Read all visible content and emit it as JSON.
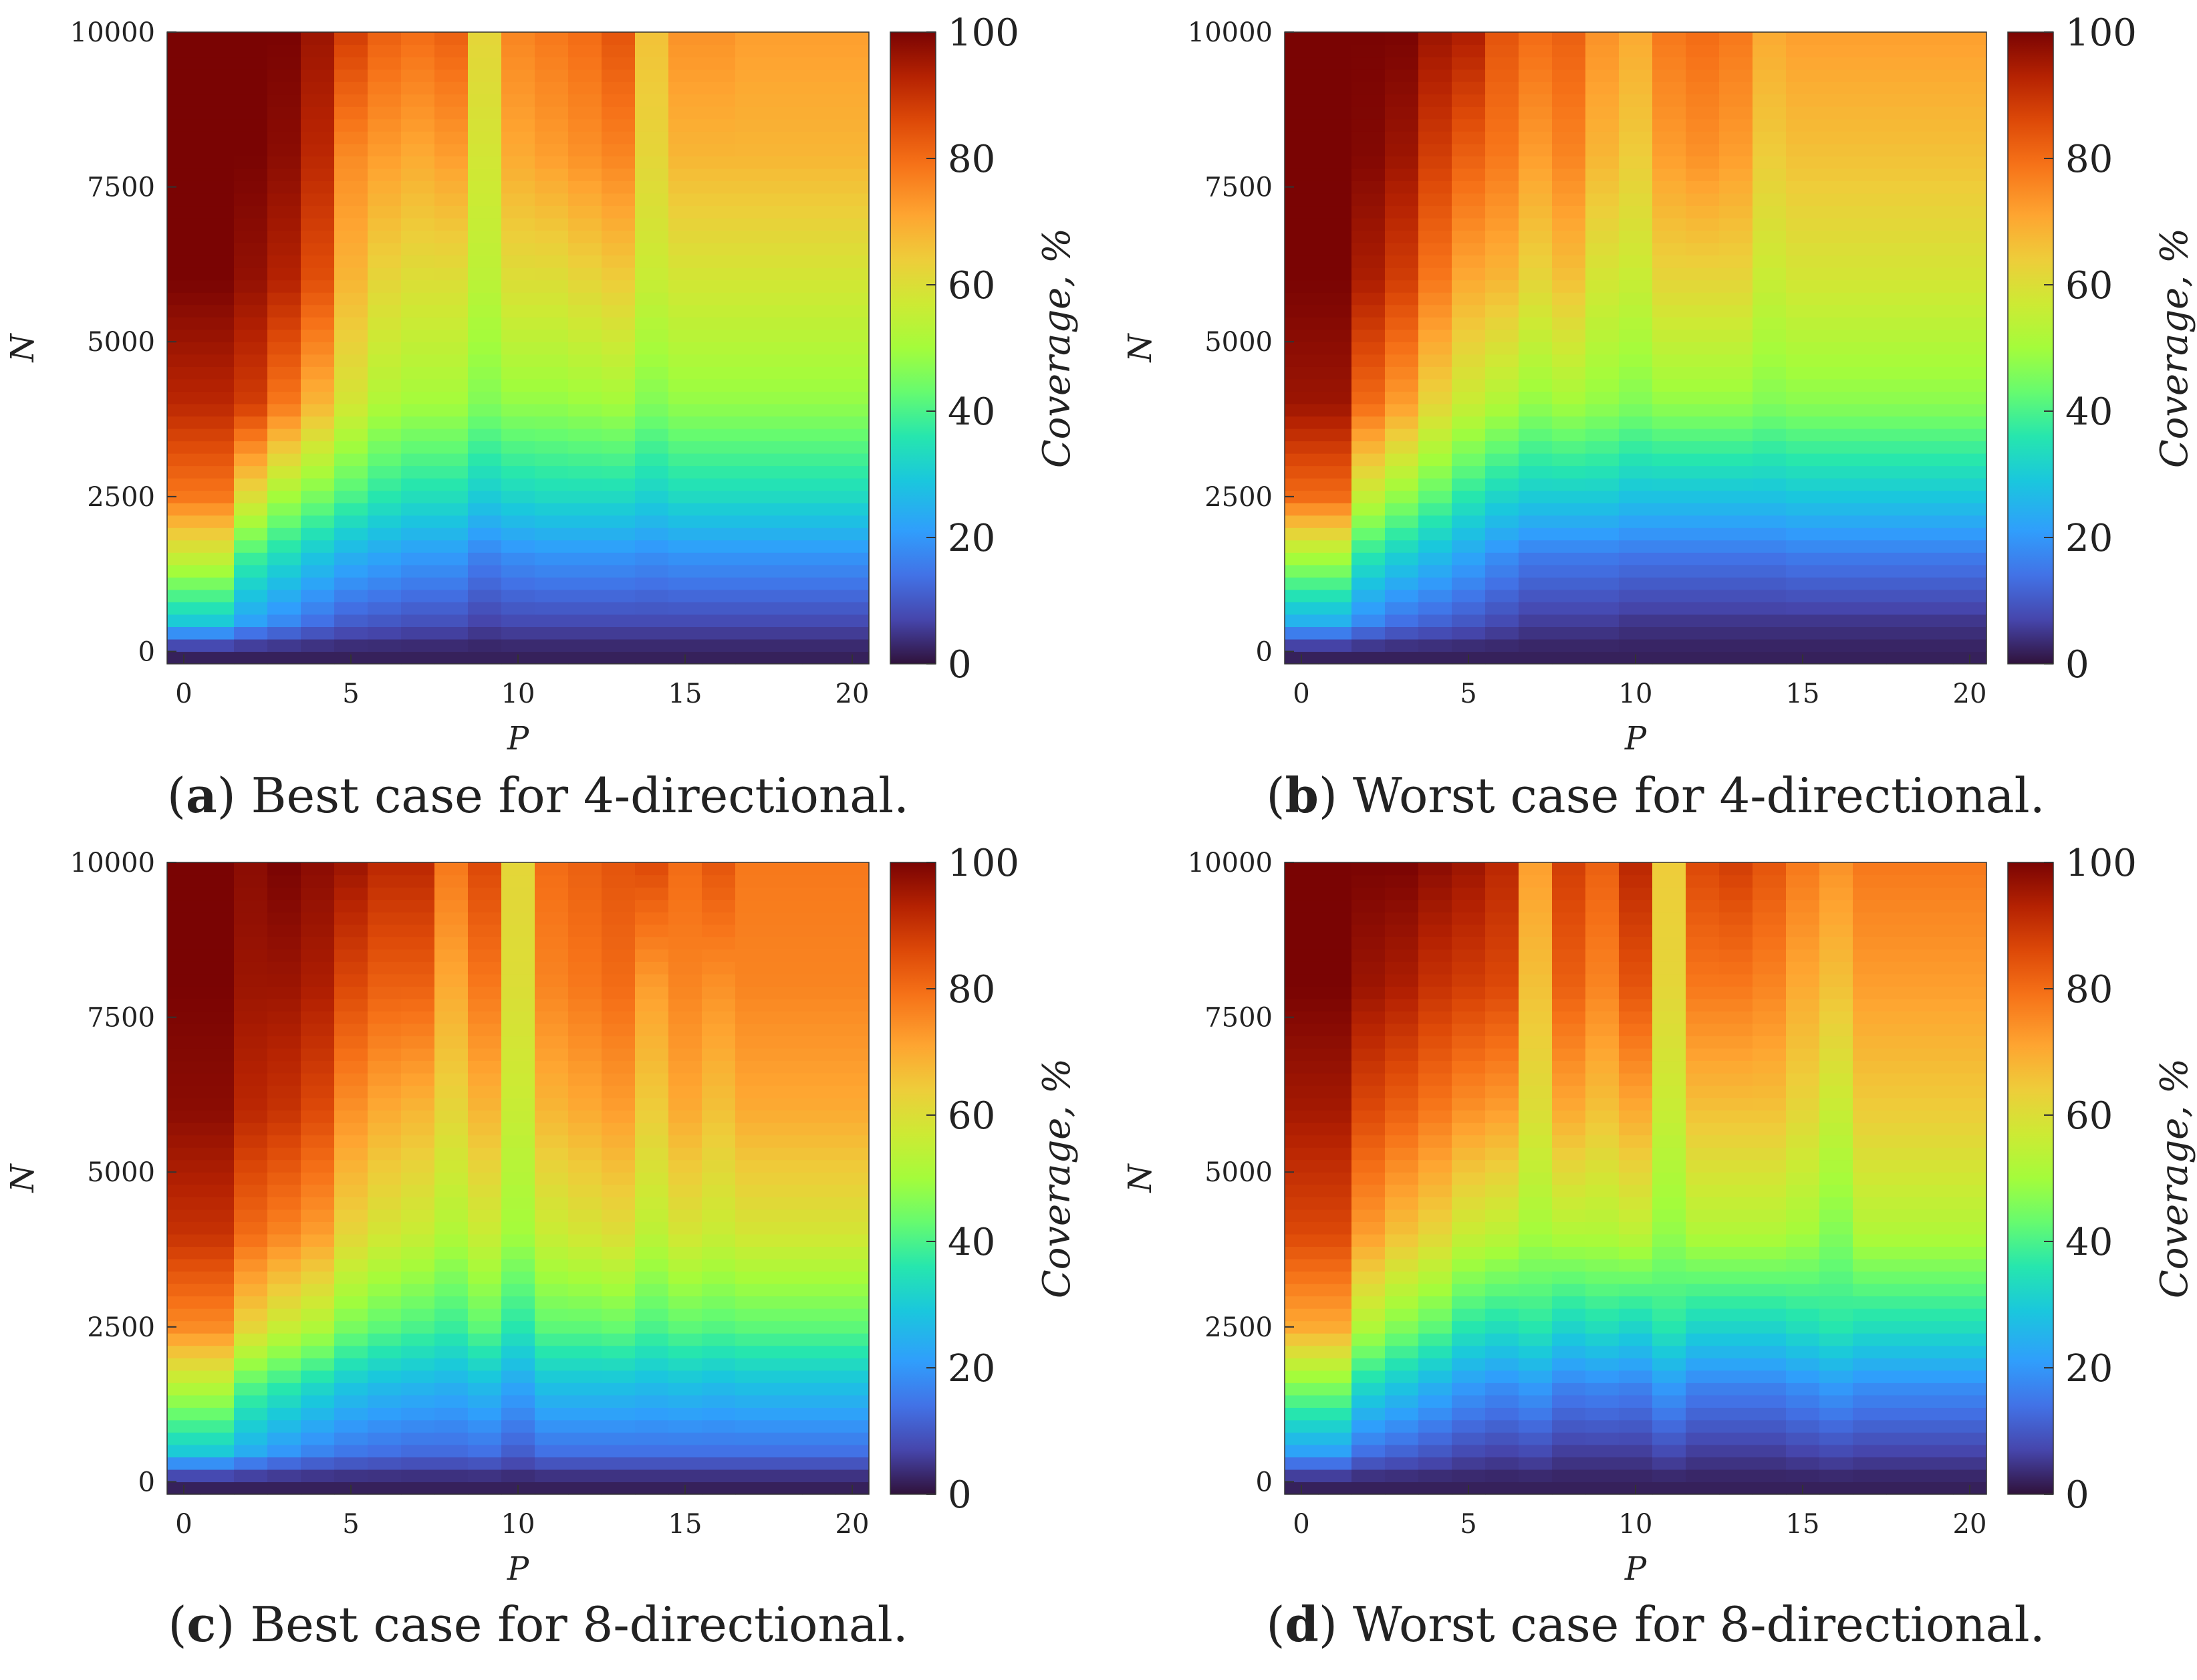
{
  "chart_data": [
    {
      "id": "a",
      "type": "heatmap",
      "caption_letter": "a",
      "caption_text": "Best case for 4-directional.",
      "xlabel": "P",
      "ylabel": "N",
      "colorbar_label": "Coverage, %",
      "xlim": [
        -0.5,
        20.5
      ],
      "ylim": [
        -200,
        10000
      ],
      "xticks": [
        0,
        5,
        10,
        15,
        20
      ],
      "yticks": [
        0,
        2500,
        5000,
        7500,
        10000
      ],
      "colorbar_ticks": [
        0,
        20,
        40,
        60,
        80,
        100
      ],
      "colorbar_range": [
        0,
        100
      ],
      "colormap": "turbo",
      "x_values": [
        0,
        1,
        2,
        3,
        4,
        5,
        6,
        7,
        8,
        9,
        10,
        11,
        12,
        13,
        14,
        15,
        16,
        17,
        18,
        19,
        20
      ],
      "profile_N": [
        0,
        500,
        1500,
        2500,
        4000,
        6000,
        8000,
        10000
      ],
      "coverage_profiles": [
        [
          2,
          30,
          55,
          78,
          92,
          100,
          100,
          100
        ],
        [
          2,
          30,
          55,
          78,
          92,
          100,
          100,
          100
        ],
        [
          2,
          22,
          38,
          60,
          88,
          97,
          100,
          100
        ],
        [
          2,
          18,
          33,
          50,
          78,
          93,
          98,
          100
        ],
        [
          2,
          14,
          28,
          45,
          68,
          85,
          92,
          96
        ],
        [
          2,
          11,
          24,
          40,
          58,
          68,
          75,
          88
        ],
        [
          2,
          10,
          22,
          36,
          52,
          62,
          72,
          82
        ],
        [
          2,
          9,
          20,
          34,
          50,
          60,
          70,
          80
        ],
        [
          2,
          9,
          20,
          34,
          50,
          60,
          72,
          82
        ],
        [
          2,
          7,
          16,
          30,
          46,
          54,
          58,
          62
        ],
        [
          2,
          8,
          18,
          32,
          48,
          60,
          70,
          76
        ],
        [
          2,
          8,
          19,
          33,
          48,
          60,
          72,
          78
        ],
        [
          2,
          8,
          19,
          33,
          49,
          62,
          74,
          80
        ],
        [
          2,
          8,
          19,
          33,
          50,
          64,
          76,
          84
        ],
        [
          2,
          8,
          18,
          31,
          46,
          56,
          62,
          66
        ],
        [
          2,
          8,
          19,
          33,
          48,
          58,
          68,
          74
        ],
        [
          2,
          8,
          19,
          33,
          48,
          58,
          68,
          74
        ],
        [
          2,
          8,
          19,
          33,
          48,
          58,
          68,
          72
        ],
        [
          2,
          8,
          19,
          33,
          48,
          58,
          68,
          72
        ],
        [
          2,
          8,
          19,
          33,
          48,
          58,
          68,
          72
        ],
        [
          2,
          8,
          19,
          33,
          48,
          58,
          68,
          72
        ]
      ]
    },
    {
      "id": "b",
      "type": "heatmap",
      "caption_letter": "b",
      "caption_text": "Worst case for 4-directional.",
      "xlabel": "P",
      "ylabel": "N",
      "colorbar_label": "Coverage, %",
      "xlim": [
        -0.5,
        20.5
      ],
      "ylim": [
        -200,
        10000
      ],
      "xticks": [
        0,
        5,
        10,
        15,
        20
      ],
      "yticks": [
        0,
        2500,
        5000,
        7500,
        10000
      ],
      "colorbar_ticks": [
        0,
        20,
        40,
        60,
        80,
        100
      ],
      "colorbar_range": [
        0,
        100
      ],
      "colormap": "turbo",
      "x_values": [
        0,
        1,
        2,
        3,
        4,
        5,
        6,
        7,
        8,
        9,
        10,
        11,
        12,
        13,
        14,
        15,
        16,
        17,
        18,
        19,
        20
      ],
      "profile_N": [
        0,
        500,
        1500,
        2500,
        4000,
        6000,
        8000,
        10000
      ],
      "coverage_profiles": [
        [
          2,
          25,
          50,
          80,
          96,
          100,
          100,
          100
        ],
        [
          2,
          25,
          50,
          80,
          96,
          100,
          100,
          100
        ],
        [
          2,
          18,
          35,
          55,
          80,
          94,
          99,
          100
        ],
        [
          2,
          14,
          30,
          48,
          72,
          88,
          96,
          100
        ],
        [
          2,
          12,
          26,
          42,
          62,
          78,
          88,
          96
        ],
        [
          2,
          10,
          22,
          36,
          56,
          70,
          82,
          94
        ],
        [
          2,
          8,
          18,
          32,
          52,
          68,
          78,
          84
        ],
        [
          2,
          6,
          15,
          30,
          48,
          62,
          72,
          80
        ],
        [
          2,
          6,
          15,
          30,
          50,
          66,
          76,
          82
        ],
        [
          2,
          6,
          15,
          30,
          48,
          58,
          68,
          74
        ],
        [
          2,
          5,
          14,
          28,
          46,
          56,
          64,
          70
        ],
        [
          2,
          5,
          14,
          28,
          48,
          62,
          72,
          78
        ],
        [
          2,
          5,
          14,
          28,
          48,
          62,
          74,
          80
        ],
        [
          2,
          5,
          14,
          28,
          48,
          62,
          72,
          78
        ],
        [
          2,
          5,
          14,
          28,
          46,
          56,
          64,
          70
        ],
        [
          2,
          5,
          15,
          29,
          47,
          58,
          66,
          72
        ],
        [
          2,
          5,
          15,
          29,
          47,
          58,
          66,
          72
        ],
        [
          2,
          5,
          15,
          29,
          47,
          58,
          66,
          72
        ],
        [
          2,
          5,
          15,
          29,
          47,
          58,
          66,
          72
        ],
        [
          2,
          5,
          15,
          29,
          47,
          58,
          66,
          72
        ],
        [
          2,
          5,
          15,
          29,
          47,
          58,
          66,
          72
        ]
      ]
    },
    {
      "id": "c",
      "type": "heatmap",
      "caption_letter": "c",
      "caption_text": "Best case for 8-directional.",
      "xlabel": "P",
      "ylabel": "N",
      "colorbar_label": "Coverage, %",
      "xlim": [
        -0.5,
        20.5
      ],
      "ylim": [
        -200,
        10000
      ],
      "xticks": [
        0,
        5,
        10,
        15,
        20
      ],
      "yticks": [
        0,
        2500,
        5000,
        7500,
        10000
      ],
      "colorbar_ticks": [
        0,
        20,
        40,
        60,
        80,
        100
      ],
      "colorbar_range": [
        0,
        100
      ],
      "colormap": "turbo",
      "x_values": [
        0,
        1,
        2,
        3,
        4,
        5,
        6,
        7,
        8,
        9,
        10,
        11,
        12,
        13,
        14,
        15,
        16,
        17,
        18,
        19,
        20
      ],
      "profile_N": [
        0,
        500,
        1500,
        2500,
        4000,
        6000,
        8000,
        10000
      ],
      "coverage_profiles": [
        [
          2,
          30,
          52,
          75,
          90,
          98,
          100,
          100
        ],
        [
          2,
          30,
          52,
          75,
          90,
          98,
          100,
          100
        ],
        [
          2,
          24,
          40,
          62,
          80,
          92,
          96,
          98
        ],
        [
          2,
          20,
          36,
          56,
          76,
          90,
          96,
          100
        ],
        [
          2,
          17,
          32,
          52,
          72,
          86,
          94,
          98
        ],
        [
          2,
          15,
          28,
          45,
          62,
          74,
          86,
          96
        ],
        [
          2,
          14,
          26,
          42,
          58,
          70,
          82,
          92
        ],
        [
          2,
          13,
          25,
          40,
          56,
          68,
          82,
          92
        ],
        [
          2,
          13,
          24,
          38,
          52,
          62,
          70,
          78
        ],
        [
          2,
          14,
          26,
          42,
          56,
          68,
          78,
          86
        ],
        [
          2,
          11,
          22,
          36,
          50,
          56,
          60,
          62
        ],
        [
          2,
          14,
          27,
          42,
          56,
          68,
          76,
          80
        ],
        [
          2,
          14,
          27,
          42,
          58,
          70,
          78,
          82
        ],
        [
          2,
          14,
          27,
          43,
          60,
          72,
          80,
          84
        ],
        [
          2,
          14,
          26,
          40,
          54,
          64,
          72,
          86
        ],
        [
          2,
          14,
          27,
          42,
          58,
          70,
          76,
          80
        ],
        [
          2,
          14,
          26,
          41,
          56,
          66,
          74,
          84
        ],
        [
          2,
          14,
          27,
          42,
          58,
          70,
          76,
          78
        ],
        [
          2,
          14,
          27,
          42,
          58,
          70,
          76,
          78
        ],
        [
          2,
          14,
          27,
          42,
          58,
          70,
          76,
          78
        ],
        [
          2,
          14,
          27,
          42,
          58,
          70,
          76,
          78
        ]
      ]
    },
    {
      "id": "d",
      "type": "heatmap",
      "caption_letter": "d",
      "caption_text": "Worst case for 8-directional.",
      "xlabel": "P",
      "ylabel": "N",
      "colorbar_label": "Coverage, %",
      "xlim": [
        -0.5,
        20.5
      ],
      "ylim": [
        -200,
        10000
      ],
      "xticks": [
        0,
        5,
        10,
        15,
        20
      ],
      "yticks": [
        0,
        2500,
        5000,
        7500,
        10000
      ],
      "colorbar_ticks": [
        0,
        20,
        40,
        60,
        80,
        100
      ],
      "colorbar_range": [
        0,
        100
      ],
      "colormap": "turbo",
      "x_values": [
        0,
        1,
        2,
        3,
        4,
        5,
        6,
        7,
        8,
        9,
        10,
        11,
        12,
        13,
        14,
        15,
        16,
        17,
        18,
        19,
        20
      ],
      "profile_N": [
        0,
        500,
        1500,
        2500,
        4000,
        6000,
        8000,
        10000
      ],
      "coverage_profiles": [
        [
          2,
          22,
          45,
          70,
          86,
          95,
          100,
          100
        ],
        [
          2,
          22,
          45,
          70,
          86,
          95,
          100,
          100
        ],
        [
          2,
          14,
          32,
          52,
          72,
          86,
          96,
          100
        ],
        [
          2,
          12,
          28,
          46,
          66,
          82,
          94,
          100
        ],
        [
          2,
          10,
          24,
          42,
          62,
          78,
          90,
          98
        ],
        [
          2,
          8,
          20,
          36,
          56,
          74,
          88,
          96
        ],
        [
          2,
          7,
          18,
          34,
          54,
          72,
          86,
          92
        ],
        [
          2,
          8,
          20,
          36,
          50,
          60,
          66,
          72
        ],
        [
          2,
          6,
          16,
          32,
          52,
          70,
          82,
          88
        ],
        [
          2,
          6,
          17,
          34,
          52,
          66,
          76,
          82
        ],
        [
          2,
          6,
          16,
          32,
          54,
          70,
          84,
          92
        ],
        [
          2,
          8,
          20,
          36,
          48,
          56,
          62,
          64
        ],
        [
          2,
          6,
          16,
          32,
          52,
          66,
          78,
          86
        ],
        [
          2,
          6,
          16,
          32,
          52,
          66,
          78,
          88
        ],
        [
          2,
          6,
          16,
          32,
          52,
          66,
          76,
          84
        ],
        [
          2,
          7,
          18,
          34,
          50,
          62,
          70,
          78
        ],
        [
          2,
          8,
          20,
          36,
          46,
          56,
          66,
          74
        ],
        [
          2,
          7,
          18,
          34,
          52,
          64,
          72,
          78
        ],
        [
          2,
          7,
          18,
          34,
          52,
          64,
          72,
          78
        ],
        [
          2,
          7,
          18,
          34,
          52,
          64,
          72,
          78
        ],
        [
          2,
          7,
          18,
          34,
          52,
          64,
          72,
          78
        ]
      ]
    }
  ]
}
